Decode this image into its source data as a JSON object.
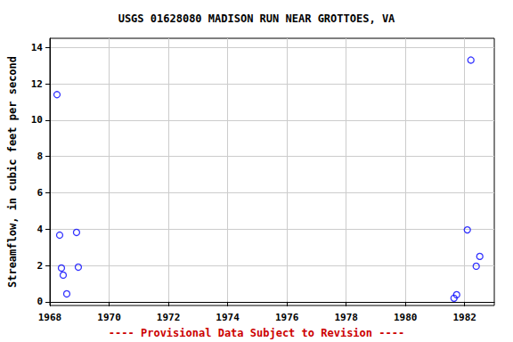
{
  "chart_data": {
    "type": "scatter",
    "title": "USGS 01628080 MADISON RUN NEAR GROTTOES, VA",
    "y_label": "Streamflow, in cubic feet per second",
    "annotation": "---- Provisional Data Subject to Revision ----",
    "x": [
      1968.24,
      1968.33,
      1968.39,
      1968.45,
      1968.57,
      1968.9,
      1968.96,
      1981.64,
      1981.73,
      1982.09,
      1982.21,
      1982.39,
      1982.51
    ],
    "values": [
      11.4,
      3.67,
      1.86,
      1.47,
      0.44,
      3.82,
      1.91,
      0.2,
      0.39,
      3.96,
      13.3,
      1.96,
      2.5
    ],
    "color": "#0000ff",
    "marker": "circle_open",
    "xlim": [
      1968,
      1983
    ],
    "xticks": [
      1968,
      1970,
      1972,
      1974,
      1976,
      1978,
      1980,
      1982
    ],
    "ylim": [
      -0.2,
      14.5
    ],
    "yticks": [
      0,
      2,
      4,
      6,
      8,
      10,
      12,
      14
    ],
    "grid": true
  }
}
